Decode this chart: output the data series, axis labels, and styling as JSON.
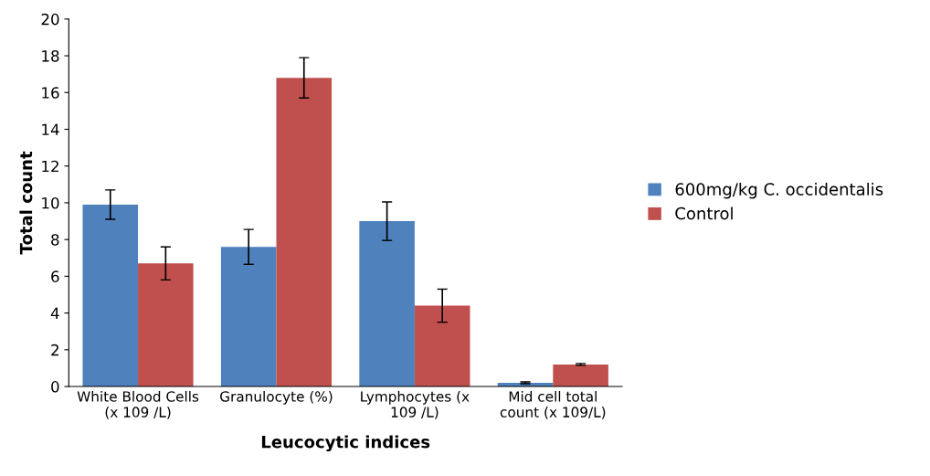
{
  "chart_data": {
    "type": "bar",
    "xlabel": "Leucocytic indices",
    "ylabel": "Total count",
    "categories": [
      "White Blood Cells (x 109 /L)",
      "Granulocyte (%)",
      "Lymphocytes (x 109 /L)",
      "Mid cell total count (x 109/L)"
    ],
    "series": [
      {
        "name": "600mg/kg C. occidentalis",
        "color": "#4f81bd",
        "values": [
          9.9,
          7.6,
          9.0,
          0.2
        ],
        "errors": [
          0.8,
          0.95,
          1.05,
          0.05
        ]
      },
      {
        "name": "Control",
        "color": "#c0504d",
        "values": [
          6.7,
          16.8,
          4.4,
          1.2
        ],
        "errors": [
          0.9,
          1.1,
          0.9,
          0.05
        ]
      }
    ],
    "ylim": [
      0,
      20
    ],
    "yticks": [
      0,
      2,
      4,
      6,
      8,
      10,
      12,
      14,
      16,
      18,
      20
    ],
    "grid": false,
    "legend": "right"
  }
}
